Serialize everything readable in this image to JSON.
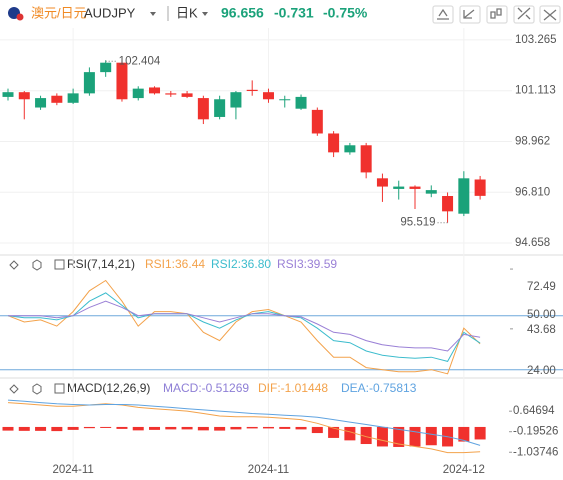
{
  "header": {
    "name": "澳元/日元",
    "symbol": "AUDJPY",
    "period": "日K",
    "price": "96.656",
    "change": "-0.731",
    "change_pct": "-0.75%"
  },
  "chart_data": [
    {
      "type": "candlestick",
      "up_color": "#1ba27a",
      "down_color": "#f0312d",
      "categories": [
        null,
        null,
        null,
        null,
        "2024-11",
        null,
        null,
        null,
        null,
        null,
        null,
        null,
        null,
        null,
        null,
        null,
        "2024-11",
        null,
        null,
        null,
        null,
        null,
        null,
        null,
        null,
        null,
        null,
        null,
        "2024-12",
        null
      ],
      "open": [
        100.85,
        101.05,
        100.4,
        100.9,
        100.6,
        101.0,
        101.9,
        102.3,
        100.8,
        101.25,
        101.0,
        101.0,
        100.8,
        100.0,
        100.4,
        101.15,
        101.05,
        100.75,
        100.35,
        100.3,
        99.3,
        98.5,
        98.8,
        97.4,
        96.95,
        97.05,
        96.75,
        96.65,
        95.9,
        97.35
      ],
      "high": [
        101.2,
        101.1,
        100.9,
        101.0,
        101.2,
        102.1,
        102.404,
        102.4,
        101.3,
        101.3,
        101.1,
        101.1,
        100.9,
        100.9,
        101.1,
        101.55,
        101.2,
        100.9,
        100.95,
        100.4,
        99.4,
        98.9,
        98.9,
        97.6,
        97.3,
        97.1,
        97.1,
        96.8,
        97.7,
        97.5
      ],
      "low": [
        100.7,
        99.9,
        100.3,
        100.5,
        100.55,
        100.9,
        101.7,
        100.65,
        100.7,
        100.95,
        100.85,
        100.8,
        99.7,
        99.9,
        99.9,
        100.9,
        100.6,
        100.4,
        100.3,
        99.2,
        98.3,
        98.4,
        97.4,
        96.4,
        96.5,
        96.1,
        96.6,
        95.519,
        95.8,
        96.5
      ],
      "close": [
        101.05,
        100.75,
        100.8,
        100.6,
        101.0,
        101.9,
        102.3,
        100.75,
        101.2,
        101.0,
        100.95,
        100.85,
        99.9,
        100.75,
        101.05,
        101.1,
        100.75,
        100.75,
        100.85,
        99.3,
        98.5,
        98.8,
        97.65,
        97.05,
        97.05,
        96.95,
        96.9,
        96.0,
        97.4,
        96.656
      ],
      "ylim": [
        94.15,
        103.77
      ],
      "yticks": [
        94.658,
        {
          "value": 96.81,
          "label": "96.810"
        },
        98.962,
        101.113,
        103.265
      ],
      "grid": true
    },
    {
      "type": "line",
      "title": "RSI(7,14,21)",
      "ylim": [
        20,
        73
      ],
      "yticks": [
        {
          "value": 24,
          "label": "24.00"
        },
        43.68,
        {
          "value": 50,
          "label": "50.00"
        },
        72.49
      ],
      "series": [
        {
          "name": "RSI1:36.44",
          "color": "#f3a24b",
          "values": [
            50,
            47,
            48,
            45,
            52,
            62,
            67,
            57,
            45,
            52,
            52,
            51,
            42,
            38,
            47,
            52,
            53,
            50,
            47,
            38,
            30,
            30,
            25,
            24,
            23,
            23,
            24,
            22,
            44,
            36.44
          ]
        },
        {
          "name": "RSI2:36.80",
          "color": "#3cbccd",
          "values": [
            50,
            49,
            49,
            48,
            50,
            57,
            61,
            55,
            49,
            51,
            51,
            51,
            47,
            44,
            48,
            51,
            52,
            50,
            49,
            44,
            38,
            37,
            33,
            31,
            30,
            29.5,
            30,
            28,
            42,
            36.8
          ]
        },
        {
          "name": "RSI3:39.59",
          "color": "#9a80d6",
          "values": [
            50,
            50,
            50,
            49,
            50,
            54,
            57,
            54,
            50,
            51,
            51,
            51,
            49,
            47,
            49,
            51,
            51,
            50,
            49.5,
            46,
            42,
            41,
            38,
            36,
            35,
            34.5,
            34.5,
            33,
            41,
            39.59
          ]
        }
      ]
    },
    {
      "type": "macd",
      "title": "MACD(12,26,9)",
      "ylim": [
        -1.56,
        1.31
      ],
      "yticks": [
        -1.03746,
        -0.19526,
        0.64694
      ],
      "series": [
        {
          "name": "MACD:-0.51269",
          "color": "#8e7fd6",
          "bar_color": "#f0312d",
          "values": [
            -0.15,
            -0.16,
            -0.16,
            -0.17,
            -0.12,
            -0.05,
            -0.02,
            -0.08,
            -0.14,
            -0.12,
            -0.1,
            -0.1,
            -0.14,
            -0.15,
            -0.1,
            -0.06,
            -0.06,
            -0.08,
            -0.1,
            -0.25,
            -0.45,
            -0.55,
            -0.7,
            -0.8,
            -0.82,
            -0.8,
            -0.75,
            -0.8,
            -0.6,
            -0.51269
          ]
        },
        {
          "name": "DIF:-1.01448",
          "color": "#f3a24b",
          "values": [
            1.0,
            0.95,
            0.9,
            0.85,
            0.85,
            0.9,
            0.95,
            0.9,
            0.8,
            0.75,
            0.7,
            0.65,
            0.55,
            0.45,
            0.42,
            0.42,
            0.4,
            0.35,
            0.3,
            0.15,
            -0.05,
            -0.2,
            -0.4,
            -0.55,
            -0.7,
            -0.8,
            -0.9,
            -1.05,
            -1.05,
            -1.01448
          ]
        },
        {
          "name": "DEA:-0.75813",
          "color": "#5fa3e0",
          "values": [
            1.1,
            1.05,
            1.0,
            0.95,
            0.92,
            0.9,
            0.92,
            0.92,
            0.9,
            0.85,
            0.8,
            0.75,
            0.7,
            0.65,
            0.6,
            0.55,
            0.52,
            0.48,
            0.45,
            0.4,
            0.3,
            0.2,
            0.1,
            0.0,
            -0.1,
            -0.2,
            -0.3,
            -0.4,
            -0.55,
            -0.75813
          ]
        }
      ]
    }
  ]
}
